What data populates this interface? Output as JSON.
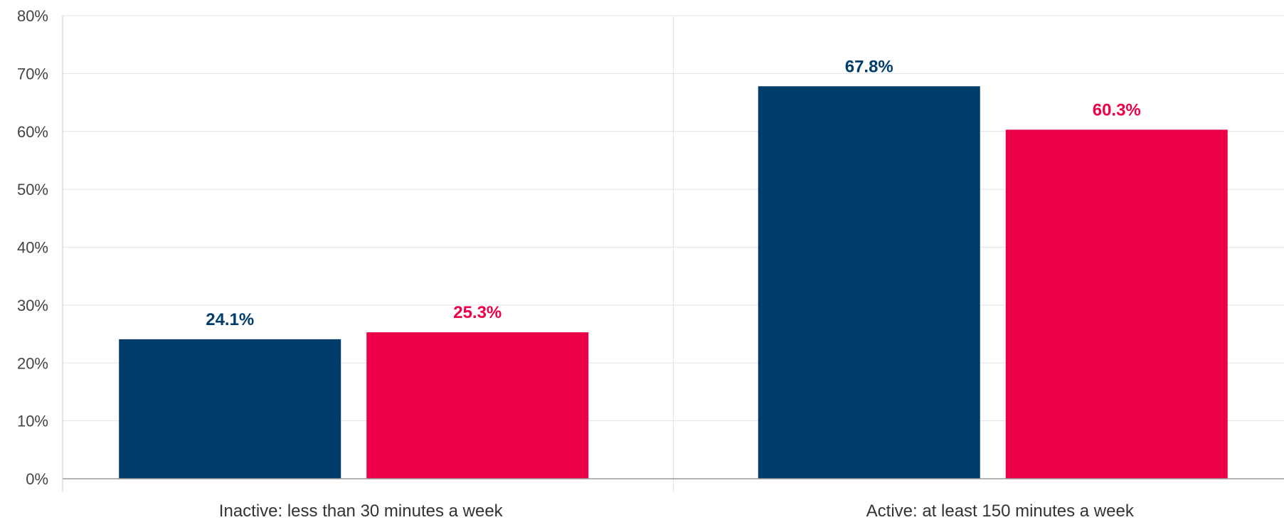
{
  "chart_data": {
    "type": "bar",
    "categories": [
      "Inactive: less than 30 minutes a week",
      "Active: at least 150 minutes a week"
    ],
    "series": [
      {
        "values": [
          24.1,
          67.8
        ],
        "labels": [
          "24.1%",
          "67.8%"
        ],
        "color": "#003d6b"
      },
      {
        "values": [
          25.3,
          60.3
        ],
        "labels": [
          "25.3%",
          "60.3%"
        ],
        "color": "#ec0047"
      }
    ],
    "yticks": [
      "0%",
      "10%",
      "20%",
      "30%",
      "40%",
      "50%",
      "60%",
      "70%",
      "80%"
    ],
    "ylim": [
      0,
      80
    ],
    "grid": true,
    "legend": "none"
  }
}
